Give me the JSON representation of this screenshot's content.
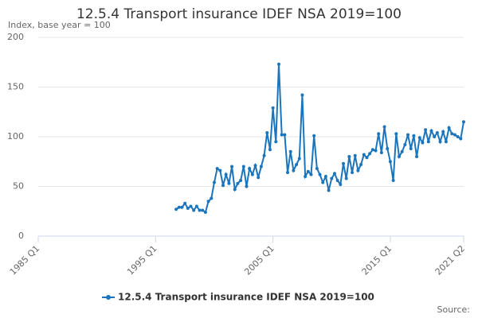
{
  "chart_data": {
    "type": "line",
    "title": "12.5.4 Transport insurance IDEF NSA 2019=100",
    "y_label": "Index, base year = 100",
    "source": "Source:",
    "categories": [
      "1985 Q1",
      null,
      null,
      null,
      null,
      null,
      null,
      null,
      null,
      null,
      null,
      null,
      null,
      null,
      null,
      null,
      null,
      null,
      null,
      null,
      null,
      null,
      null,
      null,
      null,
      null,
      null,
      null,
      null,
      null,
      null,
      null,
      null,
      null,
      null,
      null,
      null,
      null,
      null,
      null,
      "1995 Q1",
      null,
      null,
      null,
      null,
      null,
      null,
      null,
      null,
      null,
      null,
      null,
      null,
      null,
      null,
      null,
      null,
      null,
      null,
      null,
      null,
      null,
      null,
      null,
      null,
      null,
      null,
      null,
      null,
      null,
      null,
      null,
      null,
      null,
      null,
      null,
      null,
      null,
      null,
      null,
      "2005 Q1",
      null,
      null,
      null,
      null,
      null,
      null,
      null,
      null,
      null,
      null,
      null,
      null,
      null,
      null,
      null,
      null,
      null,
      null,
      null,
      null,
      null,
      null,
      null,
      null,
      null,
      null,
      null,
      null,
      null,
      null,
      null,
      null,
      null,
      null,
      null,
      null,
      null,
      null,
      null,
      "2015 Q1",
      null,
      null,
      null,
      null,
      null,
      null,
      null,
      null,
      null,
      null,
      null,
      null,
      null,
      null,
      null,
      null,
      null,
      null,
      null,
      null,
      null,
      null,
      null,
      null,
      "2021 Q2"
    ],
    "series": [
      {
        "name": "12.5.4 Transport insurance IDEF NSA 2019=100",
        "color": "#1a75bc",
        "values": [
          null,
          null,
          null,
          null,
          null,
          null,
          null,
          null,
          null,
          null,
          null,
          null,
          null,
          null,
          null,
          null,
          null,
          null,
          null,
          null,
          null,
          null,
          null,
          null,
          null,
          null,
          null,
          null,
          null,
          null,
          null,
          null,
          null,
          null,
          null,
          null,
          null,
          null,
          null,
          null,
          null,
          null,
          null,
          null,
          null,
          null,
          null,
          27,
          29,
          29,
          33,
          28,
          30,
          26,
          30,
          26,
          26,
          24,
          35,
          38,
          54,
          68,
          66,
          51,
          62,
          53,
          70,
          47,
          53,
          56,
          70,
          50,
          68,
          62,
          71,
          59,
          70,
          81,
          104,
          87,
          129,
          95,
          173,
          102,
          102,
          64,
          85,
          66,
          72,
          78,
          142,
          60,
          65,
          62,
          101,
          68,
          62,
          54,
          60,
          46,
          58,
          63,
          56,
          52,
          73,
          58,
          80,
          64,
          81,
          66,
          72,
          82,
          79,
          83,
          87,
          86,
          103,
          84,
          110,
          88,
          75,
          56,
          103,
          80,
          85,
          92,
          102,
          88,
          101,
          80,
          99,
          94,
          107,
          95,
          106,
          100,
          104,
          95,
          105,
          95,
          109,
          103,
          102,
          100,
          98,
          115
        ]
      }
    ],
    "ylim": [
      0,
      200
    ],
    "yticks": [
      0,
      50,
      100,
      150,
      200
    ],
    "grid": true
  }
}
